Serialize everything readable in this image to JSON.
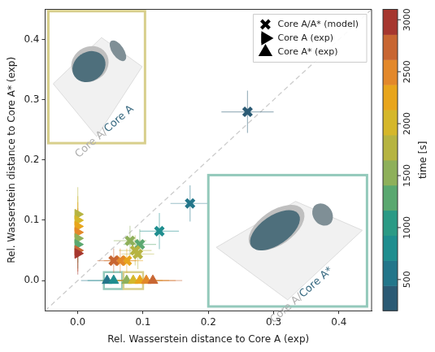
{
  "chart_data": {
    "type": "scatter",
    "xlabel": "Rel. Wasserstein distance to Core A (exp)",
    "ylabel": "Rel. Wasserstein distance to Core A* (exp)",
    "xlim": [
      -0.05,
      0.45
    ],
    "ylim": [
      -0.05,
      0.45
    ],
    "xticks": [
      {
        "value": 0,
        "label": "0.0"
      },
      0.1,
      0.2,
      0.3,
      0.4
    ],
    "yticks": [
      {
        "value": 0,
        "label": "0.0"
      },
      0.1,
      0.2,
      0.3,
      0.4
    ],
    "grid": false,
    "legend": "upper right",
    "series": [
      {
        "name": "Core A/A* (model)",
        "marker": "x",
        "points": [
          {
            "x": 0.26,
            "y": 0.28,
            "time": 300,
            "xerr": 0.04,
            "yerr": 0.035
          },
          {
            "x": 0.172,
            "y": 0.128,
            "time": 600,
            "xerr": 0.03,
            "yerr": 0.03
          },
          {
            "x": 0.125,
            "y": 0.082,
            "time": 900,
            "xerr": 0.03,
            "yerr": 0.03
          },
          {
            "x": 0.095,
            "y": 0.06,
            "time": 1300,
            "xerr": 0.025,
            "yerr": 0.025
          },
          {
            "x": 0.08,
            "y": 0.066,
            "time": 1450,
            "xerr": 0.025,
            "yerr": 0.025
          },
          {
            "x": 0.088,
            "y": 0.05,
            "time": 1650,
            "xerr": 0.025,
            "yerr": 0.025
          },
          {
            "x": 0.092,
            "y": 0.044,
            "time": 1850,
            "xerr": 0.025,
            "yerr": 0.025
          },
          {
            "x": 0.075,
            "y": 0.033,
            "time": 2350,
            "xerr": 0.025,
            "yerr": 0.02
          },
          {
            "x": 0.065,
            "y": 0.033,
            "time": 2550,
            "xerr": 0.025,
            "yerr": 0.02
          },
          {
            "x": 0.055,
            "y": 0.033,
            "time": 2850,
            "xerr": 0.025,
            "yerr": 0.02
          }
        ]
      },
      {
        "name": "Core A (exp)",
        "marker": "triangle-right",
        "points": [
          {
            "x": 0,
            "y": 0.11,
            "time": 1800,
            "xerr": 0,
            "yerr": 0.045
          },
          {
            "x": 0,
            "y": 0.1,
            "time": 2000,
            "xerr": 0,
            "yerr": 0.04
          },
          {
            "x": 0,
            "y": 0.09,
            "time": 2250,
            "xerr": 0,
            "yerr": 0.04
          },
          {
            "x": 0,
            "y": 0.08,
            "time": 2450,
            "xerr": 0,
            "yerr": 0.04
          },
          {
            "x": 0,
            "y": 0.07,
            "time": 1500,
            "xerr": 0,
            "yerr": 0.04
          },
          {
            "x": 0,
            "y": 0.06,
            "time": 1300,
            "xerr": 0,
            "yerr": 0.04
          },
          {
            "x": 0,
            "y": 0.05,
            "time": 2800,
            "xerr": 0,
            "yerr": 0.035
          },
          {
            "x": 0,
            "y": 0.045,
            "time": 3000,
            "xerr": 0,
            "yerr": 0.035
          }
        ]
      },
      {
        "name": "Core A* (exp)",
        "marker": "triangle-up",
        "points": [
          {
            "x": 0.045,
            "y": 0,
            "time": 500,
            "xerr": 0.04,
            "yerr": 0
          },
          {
            "x": 0.055,
            "y": 0,
            "time": 700,
            "xerr": 0.04,
            "yerr": 0
          },
          {
            "x": 0.075,
            "y": 0,
            "time": 1600,
            "xerr": 0.04,
            "yerr": 0
          },
          {
            "x": 0.085,
            "y": 0,
            "time": 2000,
            "xerr": 0.045,
            "yerr": 0
          },
          {
            "x": 0.095,
            "y": 0,
            "time": 2200,
            "xerr": 0.045,
            "yerr": 0
          },
          {
            "x": 0.105,
            "y": 0,
            "time": 2500,
            "xerr": 0.045,
            "yerr": 0
          },
          {
            "x": 0.115,
            "y": 0,
            "time": 2700,
            "xerr": 0.045,
            "yerr": 0
          }
        ]
      }
    ],
    "colorbar": {
      "label": "time [s]",
      "lim": [
        200,
        3100
      ],
      "ticks": [
        500,
        1000,
        1500,
        2000,
        2500,
        3000
      ],
      "colors": [
        "#2b5a74",
        "#23768a",
        "#1f8e8f",
        "#2b9a85",
        "#5aa870",
        "#8eb05a",
        "#b6b441",
        "#d5b72a",
        "#e8a51c",
        "#e3882a",
        "#c86632",
        "#a6372f"
      ]
    },
    "insets": [
      {
        "label": [
          "Core A/",
          "Core A"
        ],
        "color": "#d8cf8c"
      },
      {
        "label": [
          "Core A/",
          "Core A*"
        ],
        "color": "#93c9bb"
      }
    ]
  }
}
